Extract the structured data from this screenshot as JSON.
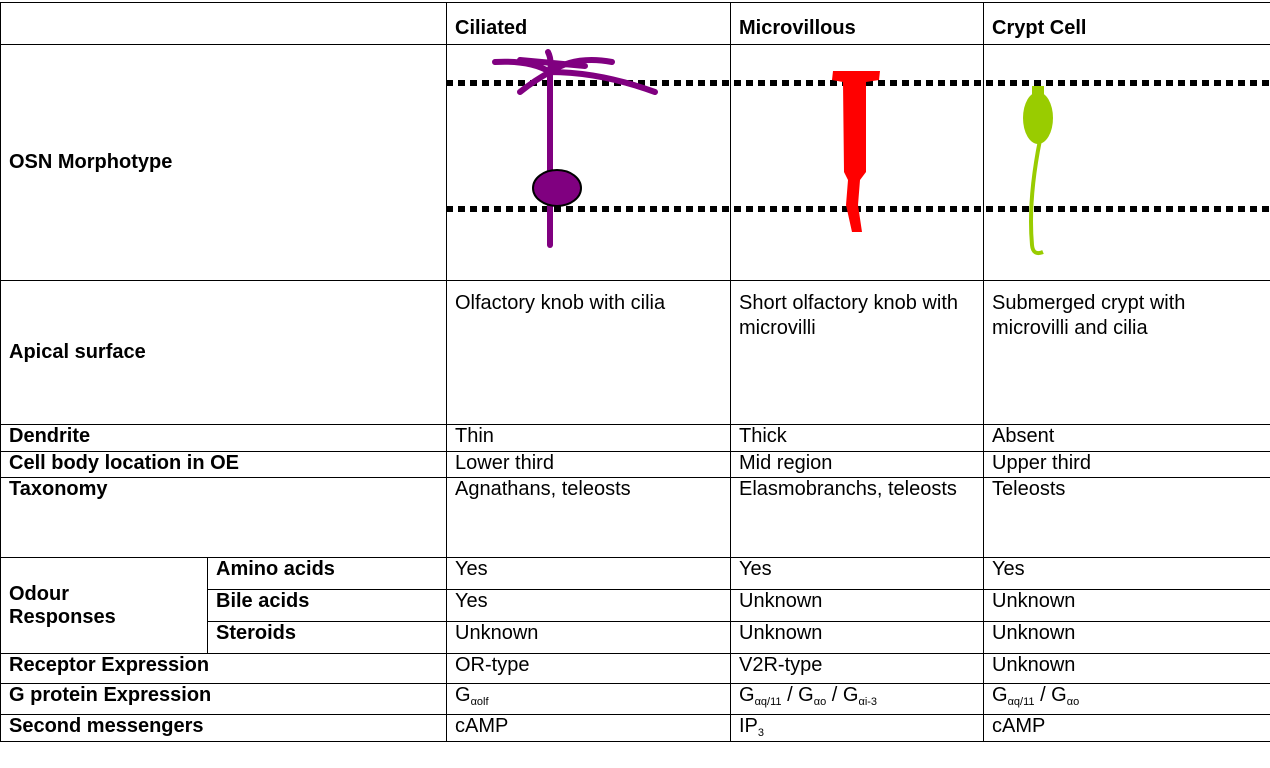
{
  "header": {
    "columns": [
      "Ciliated",
      "Microvillous",
      "Crypt Cell"
    ]
  },
  "rows": [
    {
      "label": "OSN Morphotype"
    },
    {
      "label": "Apical surface",
      "cells": [
        "Olfactory knob with cilia",
        "Short olfactory knob with microvilli",
        "Submerged crypt with microvilli and cilia"
      ]
    },
    {
      "label": "Dendrite",
      "cells": [
        "Thin",
        "Thick",
        "Absent"
      ]
    },
    {
      "label": "Cell body location in OE",
      "cells": [
        "Lower third",
        "Mid region",
        "Upper third"
      ]
    },
    {
      "label": "Taxonomy",
      "cells": [
        "Agnathans, teleosts",
        "Elasmobranchs, teleosts",
        "Teleosts"
      ]
    },
    {
      "group": "Odour Responses",
      "sub": [
        {
          "label": "Amino acids",
          "cells": [
            "Yes",
            "Yes",
            "Yes"
          ]
        },
        {
          "label": "Bile acids",
          "cells": [
            "Yes",
            "Unknown",
            "Unknown"
          ]
        },
        {
          "label": "Steroids",
          "cells": [
            "Unknown",
            "Unknown",
            "Unknown"
          ]
        }
      ]
    },
    {
      "label": "Receptor Expression",
      "cells": [
        "OR-type",
        "V2R-type",
        "Unknown"
      ]
    },
    {
      "label": "G protein Expression",
      "cells": [
        [
          "G",
          "αolf"
        ],
        [
          "G",
          "αq/11",
          " / G",
          "αo",
          " / G",
          "αi-3"
        ],
        [
          "G",
          "αq/11",
          " / G",
          "αo"
        ]
      ]
    },
    {
      "label": "Second messengers",
      "cells": [
        "cAMP",
        [
          "IP",
          "3"
        ],
        "cAMP"
      ]
    }
  ]
}
